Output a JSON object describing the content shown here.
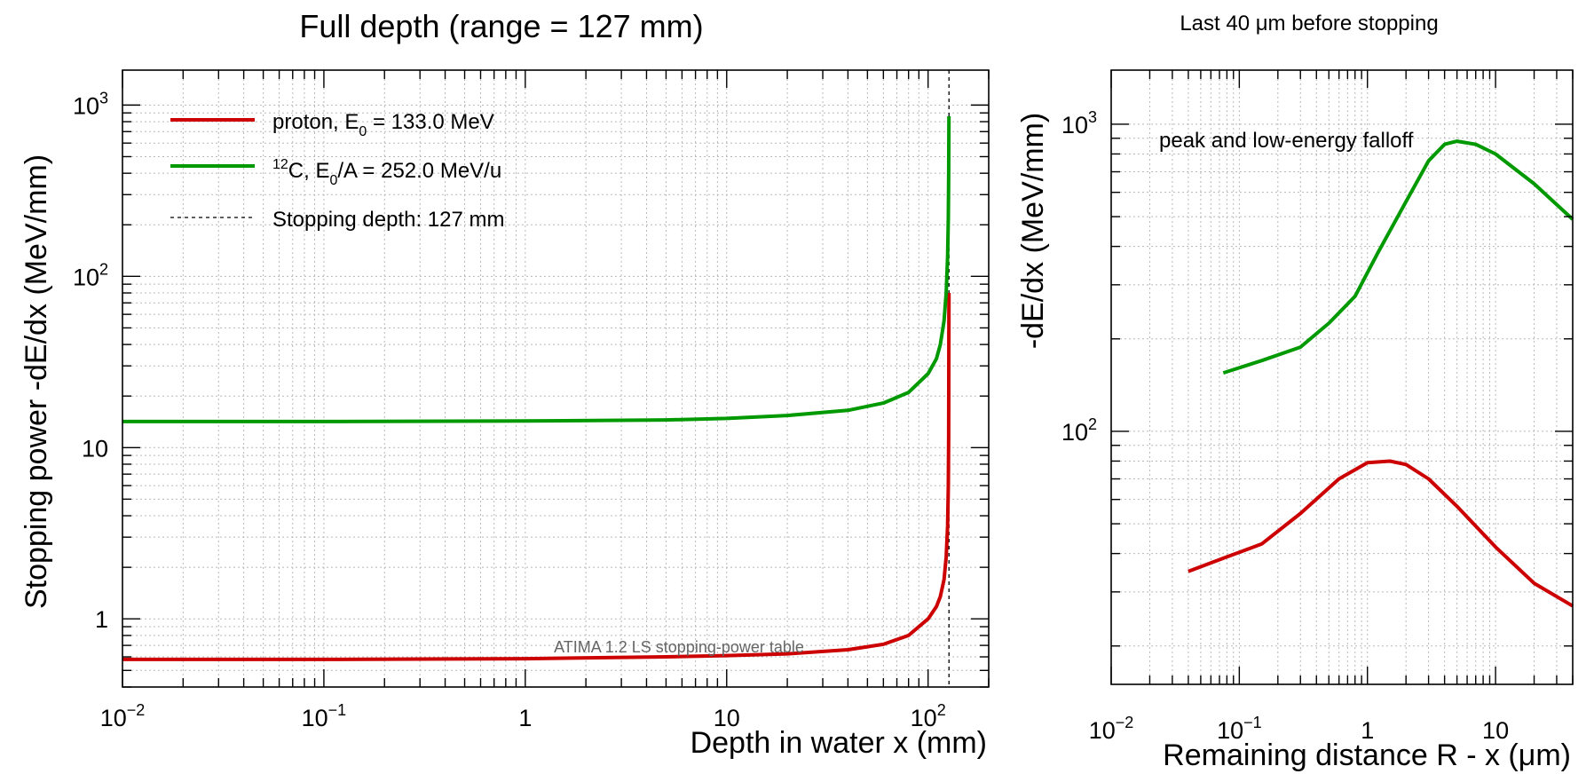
{
  "chart_data": [
    {
      "type": "line",
      "title": "Full depth (range = 127 mm)",
      "xlabel": "Depth in water x (mm)",
      "ylabel": "Stopping power -dE/dx (MeV/mm)",
      "xscale": "log",
      "yscale": "log",
      "xlim": [
        0.01,
        200
      ],
      "ylim": [
        0.4,
        1600
      ],
      "x_tick_labels": [
        {
          "v": 0.01,
          "base": "10",
          "exp": "−2"
        },
        {
          "v": 0.1,
          "base": "10",
          "exp": "−1"
        },
        {
          "v": 1,
          "base": "1",
          "exp": ""
        },
        {
          "v": 10,
          "base": "10",
          "exp": ""
        },
        {
          "v": 100,
          "base": "10",
          "exp": "2"
        }
      ],
      "y_tick_labels": [
        {
          "v": 1,
          "base": "1",
          "exp": ""
        },
        {
          "v": 10,
          "base": "10",
          "exp": ""
        },
        {
          "v": 100,
          "base": "10",
          "exp": "2"
        },
        {
          "v": 1000,
          "base": "10",
          "exp": "3"
        }
      ],
      "grid": true,
      "legend_position": "top-left",
      "legend": [
        {
          "pre": "proton, E",
          "sub": "0",
          "post": " = 133.0 MeV",
          "sup": "",
          "color": "#cc0000",
          "style": "solid"
        },
        {
          "pre": "",
          "sup": "12",
          "post": "C, E",
          "sub": "0",
          "post2": "/A = 252.0 MeV/u",
          "color": "#009900",
          "style": "solid"
        },
        {
          "pre": "Stopping depth: 127 mm",
          "sub": "",
          "post": "",
          "sup": "",
          "color": "#000000",
          "style": "dashed"
        }
      ],
      "vline": 127,
      "annotation": "ATIMA 1.2 LS stopping-power table",
      "series": [
        {
          "name": "proton",
          "color": "#cc0000",
          "x": [
            0.01,
            0.1,
            1,
            5,
            10,
            20,
            40,
            60,
            80,
            100,
            110,
            115,
            120,
            123,
            125,
            126,
            126.5,
            127
          ],
          "y": [
            0.58,
            0.58,
            0.585,
            0.6,
            0.61,
            0.625,
            0.66,
            0.71,
            0.8,
            1.0,
            1.18,
            1.35,
            1.7,
            2.3,
            3.5,
            6.0,
            12,
            80
          ]
        },
        {
          "name": "12C",
          "color": "#009900",
          "x": [
            0.01,
            0.1,
            1,
            5,
            10,
            20,
            40,
            60,
            80,
            100,
            110,
            115,
            120,
            123,
            125,
            126,
            126.5,
            127
          ],
          "y": [
            14.2,
            14.2,
            14.3,
            14.5,
            14.8,
            15.4,
            16.5,
            18.2,
            21.0,
            27.0,
            33.0,
            40.0,
            55.0,
            80.0,
            130.0,
            220.0,
            400.0,
            860.0
          ]
        }
      ]
    },
    {
      "type": "line",
      "title": "Last 40 μm before stopping",
      "xlabel": "Remaining distance R - x  (μm)",
      "ylabel": "-dE/dx (MeV/mm)",
      "xscale": "log",
      "yscale": "log",
      "xlim": [
        0.01,
        40
      ],
      "ylim": [
        15,
        1500
      ],
      "x_tick_labels": [
        {
          "v": 0.01,
          "base": "10",
          "exp": "−2"
        },
        {
          "v": 0.1,
          "base": "10",
          "exp": "−1"
        },
        {
          "v": 1,
          "base": "1",
          "exp": ""
        },
        {
          "v": 10,
          "base": "10",
          "exp": ""
        }
      ],
      "y_tick_labels": [
        {
          "v": 100,
          "base": "10",
          "exp": "2"
        },
        {
          "v": 1000,
          "base": "10",
          "exp": "3"
        }
      ],
      "grid": true,
      "annotation": "peak and low-energy falloff",
      "series": [
        {
          "name": "proton",
          "color": "#cc0000",
          "x": [
            0.04,
            0.08,
            0.15,
            0.3,
            0.6,
            1.0,
            1.5,
            2.0,
            3.0,
            5.0,
            10.0,
            20.0,
            40.0
          ],
          "y": [
            35,
            39,
            43,
            54,
            70,
            79,
            80,
            78,
            70,
            57,
            42,
            32,
            27
          ]
        },
        {
          "name": "12C",
          "color": "#009900",
          "x": [
            0.075,
            0.15,
            0.3,
            0.5,
            0.8,
            1.2,
            2.0,
            3.0,
            4.0,
            5.0,
            7.0,
            10.0,
            20.0,
            40.0
          ],
          "y": [
            155,
            170,
            188,
            225,
            275,
            380,
            560,
            760,
            860,
            880,
            860,
            800,
            640,
            490
          ]
        }
      ]
    }
  ]
}
